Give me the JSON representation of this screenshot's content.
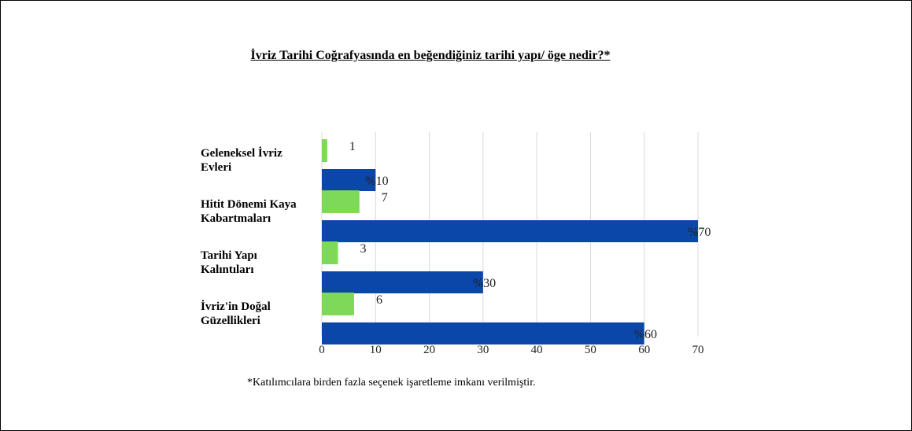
{
  "chart_data": {
    "type": "bar",
    "orientation": "horizontal",
    "title": "İvriz Tarihi Coğrafyasında en beğendiğiniz tarihi yapı/ öge nedir?*",
    "categories": [
      "Geleneksel İvriz Evleri",
      "Hitit Dönemi Kaya Kabartmaları",
      "Tarihi Yapı Kalıntıları",
      "İvriz'in Doğal Güzellikleri"
    ],
    "category_lines": [
      [
        "Geleneksel İvriz",
        "Evleri"
      ],
      [
        "Hitit Dönemi Kaya",
        "Kabartmaları"
      ],
      [
        "Tarihi Yapı",
        "Kalıntıları"
      ],
      [
        "İvriz'in Doğal",
        "Güzellikleri"
      ]
    ],
    "series": [
      {
        "values": [
          1,
          7,
          3,
          6
        ],
        "labels": [
          "1",
          "7",
          "3",
          "6"
        ],
        "color": "#7ed957"
      },
      {
        "values": [
          10,
          70,
          30,
          60
        ],
        "labels": [
          "%10",
          "%70",
          "%30",
          "%60"
        ],
        "color": "#0a47a9"
      }
    ],
    "xlim": [
      0,
      70
    ],
    "xticks": [
      0,
      10,
      20,
      30,
      40,
      50,
      60,
      70
    ],
    "grid": true,
    "legend": "none"
  },
  "footnote": "*Katılımcılara birden fazla seçenek işaretleme imkanı verilmiştir.",
  "colors": {
    "grid": "#d9d9d9",
    "frame": "#000000"
  }
}
